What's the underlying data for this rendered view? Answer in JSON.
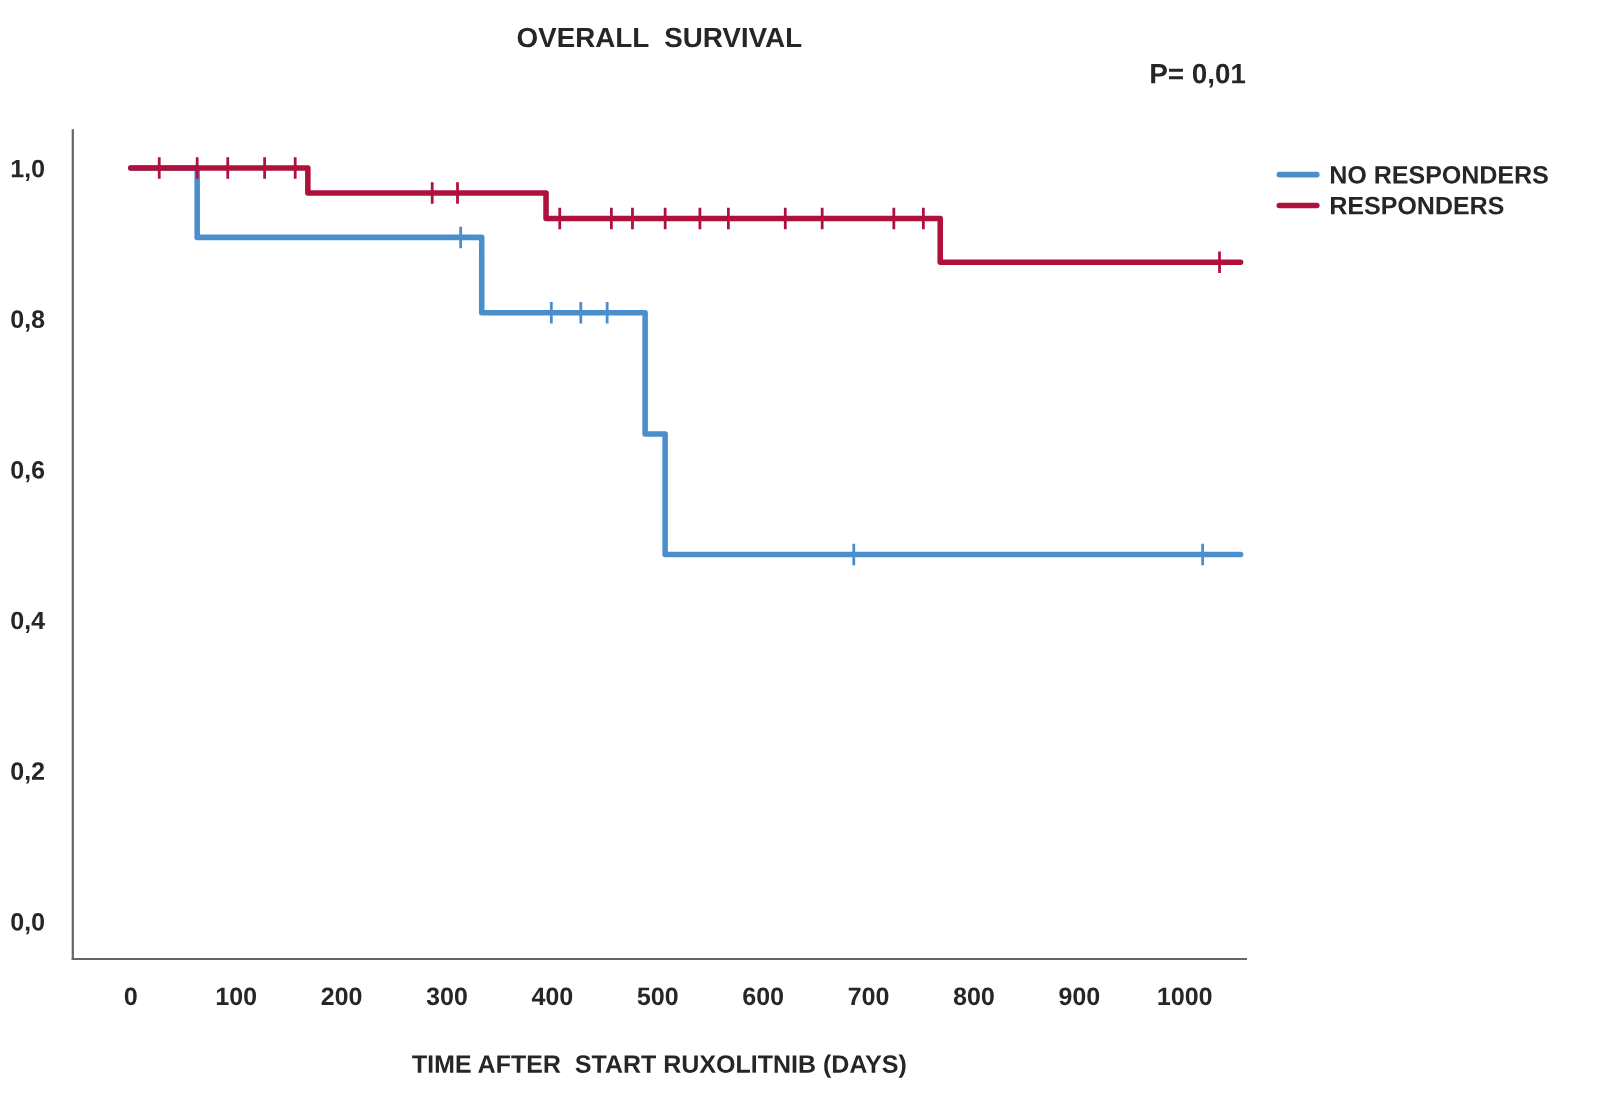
{
  "chart_data": {
    "type": "step",
    "title": "OVERALL  SURVIVAL",
    "xlabel": "TIME AFTER  START RUXOLITNIB (DAYS)",
    "annotations": [
      "P= 0,01"
    ],
    "series": [
      {
        "name": "NO RESPONDERS",
        "color": "#4a8fcc",
        "x": [
          0,
          63,
          333,
          488,
          507,
          1053
        ],
        "values": [
          1.0,
          0.908,
          0.808,
          0.647,
          0.487,
          0.487
        ],
        "marker": "none"
      },
      {
        "name": "RESPONDERS",
        "color": "#b0103c",
        "x": [
          0,
          168,
          394,
          768,
          1053
        ],
        "values": [
          1.0,
          0.967,
          0.933,
          0.875,
          0.875
        ],
        "marker": "none"
      },
      {
        "type": "scatter",
        "color": "#4a8fcc",
        "x": [
          313,
          399,
          427,
          452,
          686,
          1017
        ],
        "values": [
          0.908,
          0.808,
          0.808,
          0.808,
          0.487,
          0.487
        ],
        "marker": "cross"
      },
      {
        "type": "scatter",
        "color": "#b0103c",
        "x": [
          27,
          63,
          92,
          127,
          156,
          286,
          310,
          407,
          456,
          476,
          507,
          540,
          567,
          621,
          656,
          724,
          752,
          1033
        ],
        "values": [
          1.0,
          1.0,
          1.0,
          1.0,
          1.0,
          0.967,
          0.967,
          0.933,
          0.933,
          0.933,
          0.933,
          0.933,
          0.933,
          0.933,
          0.933,
          0.933,
          0.933,
          0.875
        ],
        "marker": "cross"
      }
    ],
    "xlim": [
      -55,
      1058
    ],
    "ylim": [
      -0.05,
      1.05
    ],
    "xticks": [
      0,
      100,
      200,
      300,
      400,
      500,
      600,
      700,
      800,
      900,
      1000
    ],
    "yticks": [
      {
        "value": 0,
        "label": "0,0"
      },
      {
        "value": 0.2,
        "label": "0,2"
      },
      {
        "value": 0.4,
        "label": "0,4"
      },
      {
        "value": 0.6,
        "label": "0,6"
      },
      {
        "value": 0.8,
        "label": "0,8"
      },
      {
        "value": 1.0,
        "label": "1,0"
      }
    ],
    "grid": false,
    "legend": "top right",
    "line_style": "solid"
  }
}
